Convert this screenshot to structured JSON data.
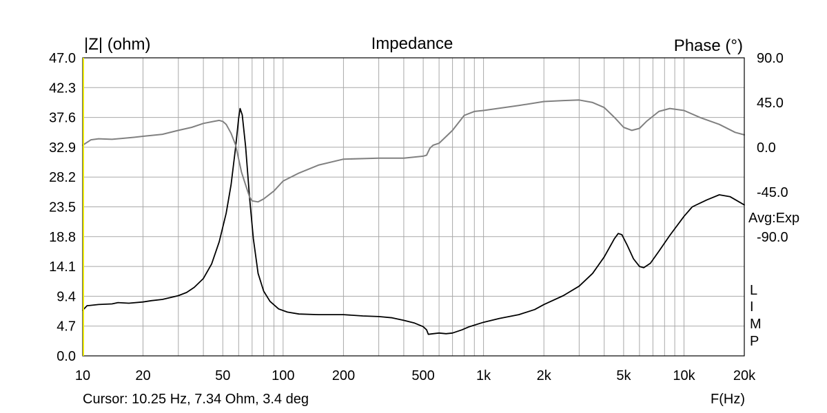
{
  "chart_data": {
    "type": "line",
    "title": "Impedance",
    "ylabel_left": "|Z| (ohm)",
    "ylabel_right": "Phase (°)",
    "xlabel": "F(Hz)",
    "x_scale": "log",
    "xlim": [
      10,
      20000
    ],
    "ylim_left": [
      0.0,
      47.0
    ],
    "ylim_right": [
      -210.0,
      90.0
    ],
    "x_ticks": [
      {
        "value": 10,
        "label": "10"
      },
      {
        "value": 20,
        "label": "20"
      },
      {
        "value": 50,
        "label": "50"
      },
      {
        "value": 100,
        "label": "100"
      },
      {
        "value": 200,
        "label": "200"
      },
      {
        "value": 500,
        "label": "500"
      },
      {
        "value": 1000,
        "label": "1k"
      },
      {
        "value": 2000,
        "label": "2k"
      },
      {
        "value": 5000,
        "label": "5k"
      },
      {
        "value": 10000,
        "label": "10k"
      },
      {
        "value": 20000,
        "label": "20k"
      }
    ],
    "y_ticks_left": [
      "0.0",
      "4.7",
      "9.4",
      "14.1",
      "18.8",
      "23.5",
      "28.2",
      "32.9",
      "37.6",
      "42.3",
      "47.0"
    ],
    "y_ticks_right": [
      {
        "value": 90,
        "label": "90.0"
      },
      {
        "value": 45,
        "label": "45.0"
      },
      {
        "value": 0,
        "label": "0.0"
      },
      {
        "value": -45,
        "label": "-45.0"
      },
      {
        "value": -90,
        "label": "-90.0"
      }
    ],
    "grid": true,
    "averaging_label": "Avg:Exp",
    "side_letters": [
      "L",
      "I",
      "M",
      "P"
    ],
    "cursor_readout": "Cursor: 10.25 Hz, 7.34 Ohm, 3.4 deg",
    "series": [
      {
        "axis": "left",
        "color": "#000000",
        "points": [
          [
            10,
            7.2
          ],
          [
            10.5,
            7.9
          ],
          [
            12,
            8.1
          ],
          [
            14,
            8.2
          ],
          [
            15,
            8.4
          ],
          [
            17,
            8.3
          ],
          [
            20,
            8.5
          ],
          [
            22,
            8.7
          ],
          [
            25,
            8.9
          ],
          [
            30,
            9.5
          ],
          [
            33,
            10.0
          ],
          [
            36,
            10.8
          ],
          [
            40,
            12.2
          ],
          [
            44,
            14.5
          ],
          [
            48,
            18.0
          ],
          [
            52,
            22.5
          ],
          [
            55,
            27.0
          ],
          [
            58,
            33.0
          ],
          [
            60,
            37.5
          ],
          [
            61,
            39.0
          ],
          [
            62.5,
            38.0
          ],
          [
            65,
            33.0
          ],
          [
            68,
            25.0
          ],
          [
            71,
            18.5
          ],
          [
            75,
            13.0
          ],
          [
            80,
            10.2
          ],
          [
            86,
            8.6
          ],
          [
            95,
            7.4
          ],
          [
            105,
            6.9
          ],
          [
            120,
            6.6
          ],
          [
            150,
            6.5
          ],
          [
            200,
            6.5
          ],
          [
            250,
            6.3
          ],
          [
            300,
            6.2
          ],
          [
            350,
            6.0
          ],
          [
            400,
            5.6
          ],
          [
            450,
            5.2
          ],
          [
            500,
            4.6
          ],
          [
            520,
            4.1
          ],
          [
            530,
            3.4
          ],
          [
            560,
            3.5
          ],
          [
            600,
            3.6
          ],
          [
            650,
            3.5
          ],
          [
            700,
            3.6
          ],
          [
            780,
            4.1
          ],
          [
            850,
            4.6
          ],
          [
            1000,
            5.3
          ],
          [
            1200,
            5.9
          ],
          [
            1500,
            6.5
          ],
          [
            1800,
            7.3
          ],
          [
            2000,
            8.1
          ],
          [
            2500,
            9.5
          ],
          [
            3000,
            11.0
          ],
          [
            3500,
            13.0
          ],
          [
            4000,
            15.6
          ],
          [
            4500,
            18.5
          ],
          [
            4700,
            19.3
          ],
          [
            4900,
            19.1
          ],
          [
            5200,
            17.5
          ],
          [
            5600,
            15.3
          ],
          [
            6000,
            14.1
          ],
          [
            6300,
            13.9
          ],
          [
            6800,
            14.6
          ],
          [
            7500,
            16.5
          ],
          [
            8500,
            19.0
          ],
          [
            10000,
            22.0
          ],
          [
            11000,
            23.5
          ],
          [
            13000,
            24.6
          ],
          [
            15000,
            25.4
          ],
          [
            17000,
            25.1
          ],
          [
            20000,
            23.8
          ]
        ]
      },
      {
        "axis": "right",
        "color": "#808080",
        "points": [
          [
            10,
            2.0
          ],
          [
            11,
            7.5
          ],
          [
            12,
            8.5
          ],
          [
            14,
            8.0
          ],
          [
            16,
            9.0
          ],
          [
            18,
            10.0
          ],
          [
            20,
            11.0
          ],
          [
            25,
            13.0
          ],
          [
            30,
            17.0
          ],
          [
            35,
            20.0
          ],
          [
            40,
            24.0
          ],
          [
            45,
            26.0
          ],
          [
            48,
            27.0
          ],
          [
            50,
            26.0
          ],
          [
            52,
            23.0
          ],
          [
            55,
            14.0
          ],
          [
            58,
            2.0
          ],
          [
            60,
            -12.0
          ],
          [
            62,
            -25.0
          ],
          [
            65,
            -38.0
          ],
          [
            68,
            -50.0
          ],
          [
            70,
            -54.0
          ],
          [
            75,
            -55.0
          ],
          [
            80,
            -52.0
          ],
          [
            90,
            -44.0
          ],
          [
            100,
            -34.0
          ],
          [
            120,
            -26.0
          ],
          [
            150,
            -18.0
          ],
          [
            200,
            -12.0
          ],
          [
            300,
            -11.0
          ],
          [
            400,
            -11.0
          ],
          [
            500,
            -9.0
          ],
          [
            520,
            -8.0
          ],
          [
            540,
            -1.0
          ],
          [
            560,
            2.0
          ],
          [
            600,
            4.0
          ],
          [
            700,
            17.0
          ],
          [
            800,
            32.0
          ],
          [
            900,
            36.0
          ],
          [
            1000,
            37.0
          ],
          [
            1500,
            42.0
          ],
          [
            2000,
            46.0
          ],
          [
            2500,
            47.0
          ],
          [
            3000,
            47.5
          ],
          [
            3500,
            45.0
          ],
          [
            4000,
            40.0
          ],
          [
            4500,
            30.0
          ],
          [
            5000,
            20.0
          ],
          [
            5500,
            17.0
          ],
          [
            6000,
            19.0
          ],
          [
            6500,
            26.0
          ],
          [
            7500,
            36.0
          ],
          [
            8500,
            39.0
          ],
          [
            10000,
            37.0
          ],
          [
            12000,
            30.0
          ],
          [
            15000,
            23.0
          ],
          [
            18000,
            15.0
          ],
          [
            20000,
            12.5
          ]
        ]
      }
    ]
  }
}
